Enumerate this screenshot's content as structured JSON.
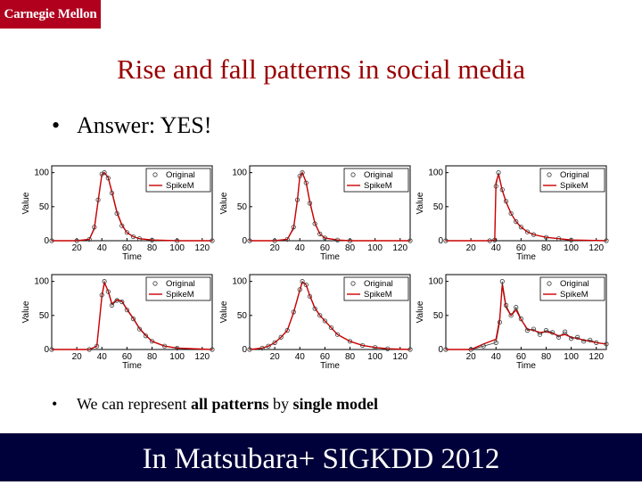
{
  "logo": {
    "text": "Carnegie Mellon"
  },
  "title": "Rise and fall patterns in social media",
  "bullets": [
    {
      "symbol": "•",
      "text": "Answer: YES!"
    },
    {
      "symbol": "•",
      "pre": "We can represent ",
      "bold1": "all patterns",
      "mid": " by ",
      "bold2": "single model"
    }
  ],
  "footer": "In Matsubara+ SIGKDD 2012",
  "colors": {
    "original": "#3c3c3c",
    "spikem": "#cc0000",
    "title": "#990000",
    "logo_bg": "#b0001e",
    "footer_bg": "#00003a"
  },
  "chart_data": [
    {
      "type": "line",
      "ylabel": "Value",
      "xlabel": "Time",
      "xticks": [
        20,
        40,
        60,
        80,
        100,
        120
      ],
      "yticks": [
        0,
        50,
        100
      ],
      "xlim": [
        0,
        128
      ],
      "ylim": [
        0,
        110
      ],
      "legend": [
        "Original",
        "SpikeM"
      ],
      "legend_position": "top-right",
      "series": [
        {
          "name": "Original",
          "style": "circles",
          "x": [
            0,
            20,
            30,
            34,
            37,
            40,
            42,
            45,
            48,
            52,
            56,
            60,
            65,
            70,
            80,
            100,
            128
          ],
          "y": [
            0,
            0,
            2,
            20,
            60,
            98,
            100,
            92,
            70,
            40,
            22,
            12,
            6,
            3,
            1,
            0,
            0
          ]
        },
        {
          "name": "SpikeM",
          "style": "line",
          "x": [
            0,
            20,
            30,
            34,
            37,
            40,
            42,
            45,
            48,
            52,
            56,
            60,
            65,
            70,
            80,
            100,
            128
          ],
          "y": [
            0,
            0,
            2,
            18,
            58,
            97,
            100,
            93,
            72,
            42,
            23,
            12,
            6,
            3,
            1,
            0,
            0
          ]
        }
      ]
    },
    {
      "type": "line",
      "ylabel": "Value",
      "xlabel": "Time",
      "xticks": [
        20,
        40,
        60,
        80,
        100,
        120
      ],
      "yticks": [
        0,
        50,
        100
      ],
      "xlim": [
        0,
        128
      ],
      "ylim": [
        0,
        110
      ],
      "legend": [
        "Original",
        "SpikeM"
      ],
      "legend_position": "top-right",
      "series": [
        {
          "name": "Original",
          "style": "circles",
          "x": [
            0,
            20,
            30,
            35,
            38,
            40,
            42,
            45,
            48,
            52,
            56,
            60,
            70,
            80,
            128
          ],
          "y": [
            0,
            0,
            2,
            20,
            60,
            95,
            100,
            85,
            55,
            25,
            10,
            4,
            1,
            0,
            0
          ]
        },
        {
          "name": "SpikeM",
          "style": "line",
          "x": [
            0,
            20,
            30,
            35,
            38,
            40,
            42,
            45,
            48,
            52,
            56,
            60,
            70,
            80,
            128
          ],
          "y": [
            0,
            0,
            2,
            18,
            58,
            94,
            100,
            86,
            57,
            26,
            10,
            4,
            1,
            0,
            0
          ]
        }
      ]
    },
    {
      "type": "line",
      "ylabel": "Value",
      "xlabel": "Time",
      "xticks": [
        20,
        40,
        60,
        80,
        100,
        120
      ],
      "yticks": [
        0,
        50,
        100
      ],
      "xlim": [
        0,
        128
      ],
      "ylim": [
        0,
        110
      ],
      "legend": [
        "Original",
        "SpikeM"
      ],
      "legend_position": "top-right",
      "series": [
        {
          "name": "Original",
          "style": "circles",
          "x": [
            0,
            35,
            39,
            40,
            42,
            45,
            48,
            52,
            56,
            60,
            65,
            70,
            80,
            90,
            100,
            128
          ],
          "y": [
            0,
            0,
            1,
            80,
            100,
            75,
            58,
            40,
            28,
            20,
            13,
            9,
            5,
            3,
            1,
            0
          ]
        },
        {
          "name": "SpikeM",
          "style": "line",
          "x": [
            0,
            35,
            39,
            40,
            42,
            45,
            48,
            52,
            56,
            60,
            65,
            70,
            80,
            90,
            100,
            128
          ],
          "y": [
            0,
            0,
            1,
            85,
            98,
            74,
            57,
            40,
            28,
            20,
            13,
            9,
            5,
            3,
            1,
            0
          ]
        }
      ]
    },
    {
      "type": "line",
      "ylabel": "Value",
      "xlabel": "Time",
      "xticks": [
        20,
        40,
        60,
        80,
        100,
        120
      ],
      "yticks": [
        0,
        50,
        100
      ],
      "xlim": [
        0,
        128
      ],
      "ylim": [
        0,
        110
      ],
      "legend": [
        "Original",
        "SpikeM"
      ],
      "legend_position": "top-right",
      "series": [
        {
          "name": "Original",
          "style": "circles",
          "x": [
            0,
            30,
            36,
            40,
            42,
            45,
            48,
            52,
            56,
            60,
            65,
            70,
            75,
            80,
            90,
            100,
            128
          ],
          "y": [
            0,
            0,
            5,
            80,
            100,
            85,
            65,
            72,
            70,
            58,
            45,
            30,
            20,
            12,
            5,
            2,
            0
          ]
        },
        {
          "name": "SpikeM",
          "style": "line",
          "x": [
            0,
            30,
            36,
            40,
            42,
            45,
            48,
            52,
            56,
            60,
            65,
            70,
            75,
            80,
            90,
            100,
            128
          ],
          "y": [
            0,
            0,
            5,
            78,
            98,
            86,
            67,
            73,
            71,
            59,
            46,
            31,
            21,
            12,
            5,
            2,
            0
          ]
        }
      ]
    },
    {
      "type": "line",
      "ylabel": "Value",
      "xlabel": "Time",
      "xticks": [
        20,
        40,
        60,
        80,
        100,
        120
      ],
      "yticks": [
        0,
        50,
        100
      ],
      "xlim": [
        0,
        128
      ],
      "ylim": [
        0,
        110
      ],
      "legend": [
        "Original",
        "SpikeM"
      ],
      "legend_position": "top-right",
      "series": [
        {
          "name": "Original",
          "style": "circles",
          "x": [
            0,
            10,
            15,
            20,
            25,
            30,
            35,
            40,
            42,
            45,
            48,
            52,
            56,
            60,
            65,
            70,
            80,
            90,
            100,
            110,
            128
          ],
          "y": [
            0,
            2,
            5,
            10,
            18,
            28,
            55,
            88,
            100,
            95,
            78,
            60,
            50,
            42,
            32,
            22,
            12,
            6,
            3,
            1,
            0
          ]
        },
        {
          "name": "SpikeM",
          "style": "line",
          "x": [
            0,
            10,
            15,
            20,
            25,
            30,
            35,
            40,
            42,
            45,
            48,
            52,
            56,
            60,
            65,
            70,
            80,
            90,
            100,
            110,
            128
          ],
          "y": [
            0,
            2,
            5,
            10,
            18,
            28,
            54,
            87,
            99,
            95,
            79,
            61,
            50,
            42,
            32,
            22,
            12,
            6,
            3,
            1,
            0
          ]
        }
      ]
    },
    {
      "type": "line",
      "ylabel": "Value",
      "xlabel": "Time",
      "xticks": [
        20,
        40,
        60,
        80,
        100,
        120
      ],
      "yticks": [
        0,
        50,
        100
      ],
      "xlim": [
        0,
        128
      ],
      "ylim": [
        0,
        110
      ],
      "legend": [
        "Original",
        "SpikeM"
      ],
      "legend_position": "top-right",
      "series": [
        {
          "name": "Original",
          "style": "circles",
          "x": [
            0,
            20,
            30,
            40,
            43,
            45,
            48,
            52,
            56,
            60,
            65,
            70,
            75,
            80,
            85,
            90,
            95,
            100,
            105,
            110,
            115,
            120,
            128
          ],
          "y": [
            0,
            0,
            5,
            10,
            40,
            100,
            65,
            50,
            62,
            45,
            28,
            30,
            22,
            28,
            25,
            18,
            26,
            16,
            18,
            12,
            14,
            10,
            8
          ]
        },
        {
          "name": "SpikeM",
          "style": "line",
          "x": [
            0,
            20,
            30,
            40,
            43,
            45,
            48,
            52,
            56,
            60,
            65,
            70,
            75,
            80,
            85,
            90,
            95,
            100,
            105,
            110,
            115,
            120,
            128
          ],
          "y": [
            0,
            0,
            8,
            15,
            45,
            95,
            62,
            50,
            58,
            44,
            30,
            28,
            25,
            26,
            24,
            20,
            22,
            18,
            16,
            14,
            12,
            10,
            8
          ]
        }
      ]
    }
  ]
}
